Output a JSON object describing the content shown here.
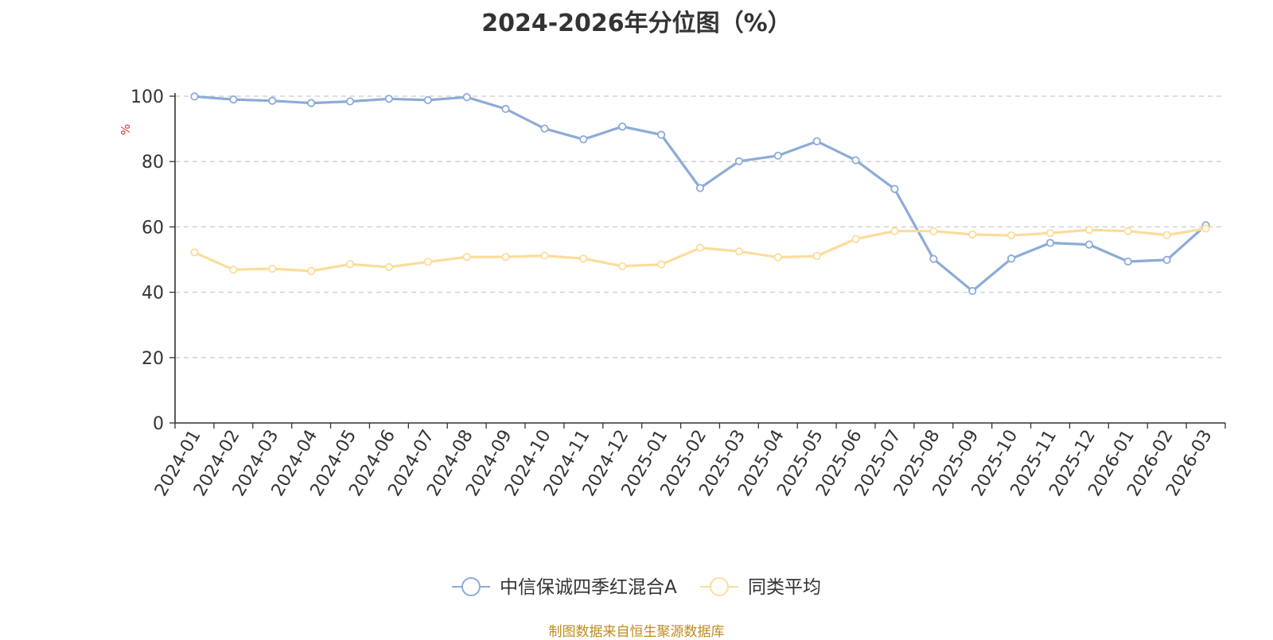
{
  "chart_data": {
    "type": "line",
    "title": "2024-2026年分位图（%）",
    "ylabel": "%",
    "ylim": [
      0,
      100
    ],
    "yticks": [
      0,
      20,
      40,
      60,
      80,
      100
    ],
    "grid": true,
    "legend_position": "bottom",
    "categories": [
      "2024-01",
      "2024-02",
      "2024-03",
      "2024-04",
      "2024-05",
      "2024-06",
      "2024-07",
      "2024-08",
      "2024-09",
      "2024-10",
      "2024-11",
      "2024-12",
      "2025-01",
      "2025-02",
      "2025-03",
      "2025-04",
      "2025-05",
      "2025-06",
      "2025-07",
      "2025-08",
      "2025-09",
      "2025-10",
      "2025-11",
      "2025-12",
      "2026-01",
      "2026-02",
      "2026-03"
    ],
    "series": [
      {
        "name": "中信保诚四季红混合A",
        "color": "#8dabd9",
        "values": [
          99.9,
          99.0,
          98.6,
          97.9,
          98.4,
          99.2,
          98.8,
          99.7,
          96.1,
          90.1,
          86.8,
          90.7,
          88.2,
          71.9,
          80.1,
          81.8,
          86.2,
          80.4,
          71.6,
          50.2,
          40.4,
          50.3,
          55.1,
          54.6,
          49.4,
          49.9,
          60.5
        ]
      },
      {
        "name": "同类平均",
        "color": "#fcdc9a",
        "values": [
          52.2,
          46.9,
          47.2,
          46.5,
          48.6,
          47.7,
          49.3,
          50.8,
          50.8,
          51.2,
          50.3,
          48.0,
          48.5,
          53.6,
          52.5,
          50.7,
          51.1,
          56.3,
          58.7,
          58.7,
          57.7,
          57.4,
          58.1,
          59.1,
          58.7,
          57.5,
          59.5
        ]
      }
    ]
  },
  "footer": {
    "source": "制图数据来自恒生聚源数据库",
    "source_color": "#c08a1e"
  },
  "colors": {
    "axis": "#333333",
    "grid": "#cccccc",
    "ylabel": "#e03030"
  }
}
